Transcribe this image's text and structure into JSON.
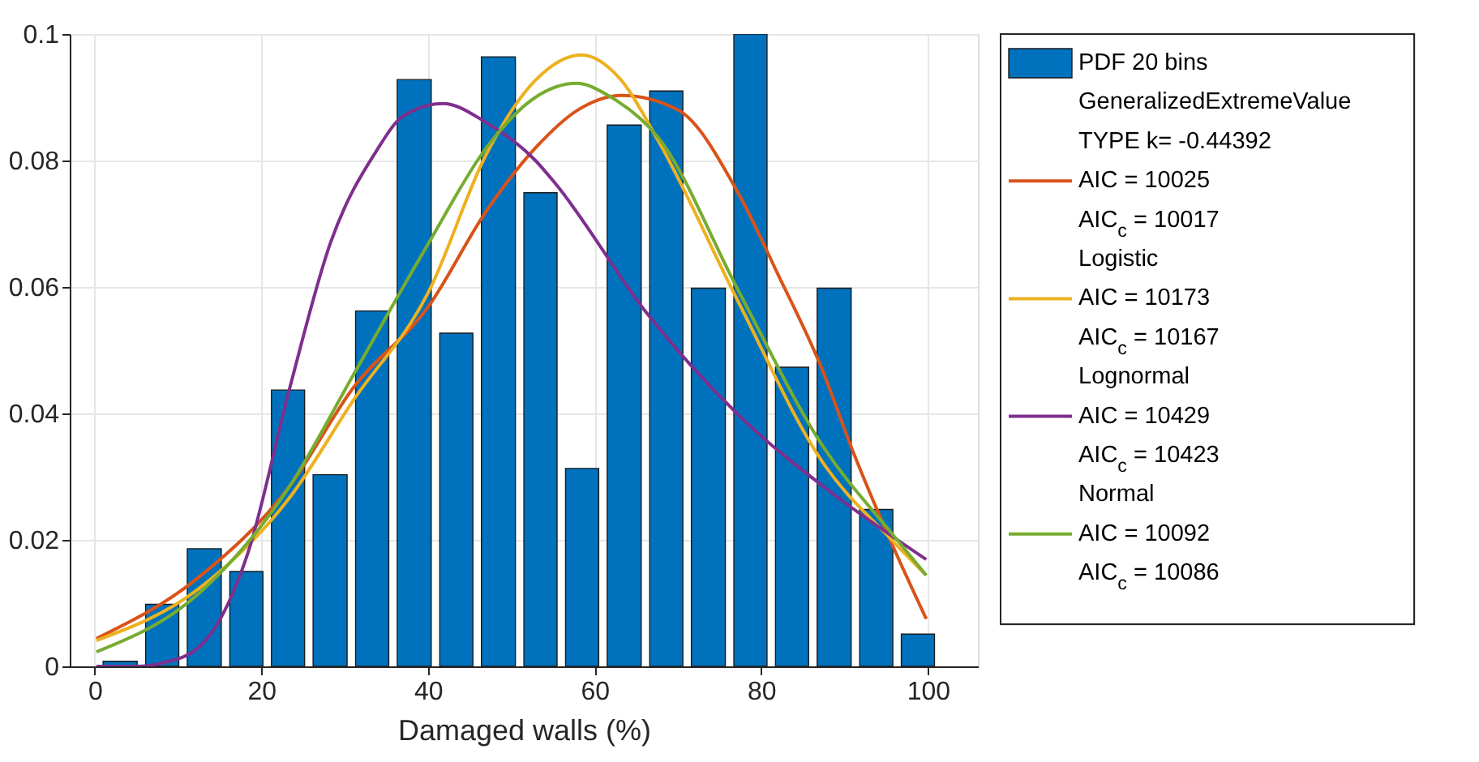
{
  "chart_data": {
    "type": "histogram",
    "xlabel": "Damaged walls (%)",
    "bins": [
      0.5,
      5.6,
      10.6,
      15.7,
      20.7,
      25.7,
      30.8,
      35.8,
      40.9,
      45.9,
      51.0,
      56.0,
      61.0,
      66.1,
      71.1,
      76.2,
      81.2,
      86.2,
      91.3,
      96.3,
      101.3
    ],
    "series": [
      {
        "name": "PDF 20 bins",
        "color": "#0072bd",
        "values": [
          0.0008,
          0.0098,
          0.0186,
          0.015,
          0.0437,
          0.0303,
          0.0562,
          0.0928,
          0.0527,
          0.0964,
          0.0749,
          0.0313,
          0.0856,
          0.091,
          0.0598,
          0.1,
          0.0473,
          0.0598,
          0.0248,
          0.0051
        ]
      },
      {
        "name": "GeneralizedExtremeValue\nTYPE k= -0.44392\nAIC = 10025\nAIC$_{c}$ = 10017",
        "type": "line",
        "color": "#d95319",
        "x": [
          0.2,
          12.3,
          23.4,
          31,
          40.1,
          47,
          52.9,
          58,
          63.3,
          70,
          77.3,
          82,
          87.2,
          91,
          95.8,
          99.8
        ],
        "values": [
          0.0044,
          0.0139,
          0.0285,
          0.044,
          0.057,
          0.072,
          0.082,
          0.088,
          0.0903,
          0.088,
          0.0747,
          0.062,
          0.0473,
          0.034,
          0.019,
          0.0075
        ]
      },
      {
        "name": "Logistic\nAIC = 10173\nAIC$_{c}$ = 10167",
        "type": "line",
        "color": "#edb120",
        "x": [
          0.2,
          12.3,
          23.4,
          31,
          40.1,
          47,
          52.9,
          58.4,
          63,
          67.6,
          77.3,
          87.2,
          95.8,
          99.8
        ],
        "values": [
          0.0041,
          0.0121,
          0.0267,
          0.042,
          0.0593,
          0.081,
          0.0927,
          0.0967,
          0.093,
          0.0832,
          0.0575,
          0.0326,
          0.0198,
          0.0144
        ]
      },
      {
        "name": "Lognormal\nAIC = 10429\nAIC$_{c}$ = 10423",
        "type": "line",
        "color": "#7e2f8e",
        "x": [
          0.2,
          5,
          8,
          12.3,
          18.4,
          23.4,
          28.3,
          33.8,
          37,
          41.8,
          47,
          52.9,
          55.2,
          66.3,
          78.1,
          88.4,
          99.8
        ],
        "values": [
          0.0,
          0.0,
          0.0005,
          0.0028,
          0.018,
          0.044,
          0.067,
          0.0815,
          0.087,
          0.089,
          0.086,
          0.08,
          0.0765,
          0.0558,
          0.0387,
          0.0275,
          0.0169
        ]
      },
      {
        "name": "Normal\nAIC = 10092\nAIC$_{c}$ = 10086",
        "type": "line",
        "color": "#77ac30",
        "x": [
          0.2,
          12.3,
          23.4,
          31,
          40.1,
          47,
          52.9,
          57.8,
          62,
          67.6,
          77.3,
          87.2,
          95.8,
          99.8
        ],
        "values": [
          0.0023,
          0.0113,
          0.0285,
          0.046,
          0.067,
          0.082,
          0.09,
          0.0922,
          0.09,
          0.0837,
          0.0593,
          0.0352,
          0.0208,
          0.0144
        ]
      }
    ],
    "xlim": [
      -3,
      106
    ],
    "ylim": [
      0,
      0.1
    ],
    "xticks": [
      0,
      20,
      40,
      60,
      80,
      100
    ],
    "yticks": [
      0,
      0.02,
      0.04,
      0.06,
      0.08,
      0.1
    ],
    "grid": true,
    "legend": "right"
  }
}
